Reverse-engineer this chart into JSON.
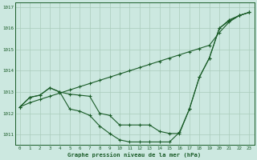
{
  "title": "Graphe pression niveau de la mer (hPa)",
  "background_color": "#cce8e0",
  "grid_color": "#aaccbb",
  "line_color": "#1a5c28",
  "x_ticks": [
    0,
    1,
    2,
    3,
    4,
    5,
    6,
    7,
    8,
    9,
    10,
    11,
    12,
    13,
    14,
    15,
    16,
    17,
    18,
    19,
    20,
    21,
    22,
    23
  ],
  "y_min": 1010.5,
  "y_max": 1017.2,
  "y_ticks": [
    1011,
    1012,
    1013,
    1014,
    1015,
    1016,
    1017
  ],
  "line1": [
    1012.3,
    1012.5,
    1012.65,
    1012.8,
    1012.95,
    1013.1,
    1013.25,
    1013.4,
    1013.55,
    1013.7,
    1013.85,
    1014.0,
    1014.15,
    1014.3,
    1014.45,
    1014.6,
    1014.75,
    1014.9,
    1015.05,
    1015.2,
    1015.8,
    1016.3,
    1016.6,
    1016.75
  ],
  "line2": [
    1012.3,
    1012.75,
    1012.85,
    1013.2,
    1013.0,
    1012.9,
    1012.85,
    1012.8,
    1012.0,
    1011.9,
    1011.45,
    1011.45,
    1011.45,
    1011.45,
    1011.15,
    1011.05,
    1011.05,
    1012.2,
    1013.7,
    1014.6,
    1016.0,
    1016.4,
    1016.6,
    1016.75
  ],
  "line3": [
    1012.3,
    1012.75,
    1012.85,
    1013.2,
    1013.0,
    1012.2,
    1012.1,
    1011.9,
    1011.4,
    1011.05,
    1010.75,
    1010.65,
    1010.65,
    1010.65,
    1010.65,
    1010.65,
    1011.1,
    1012.2,
    1013.7,
    1014.6,
    1016.0,
    1016.35,
    1016.6,
    1016.75
  ]
}
